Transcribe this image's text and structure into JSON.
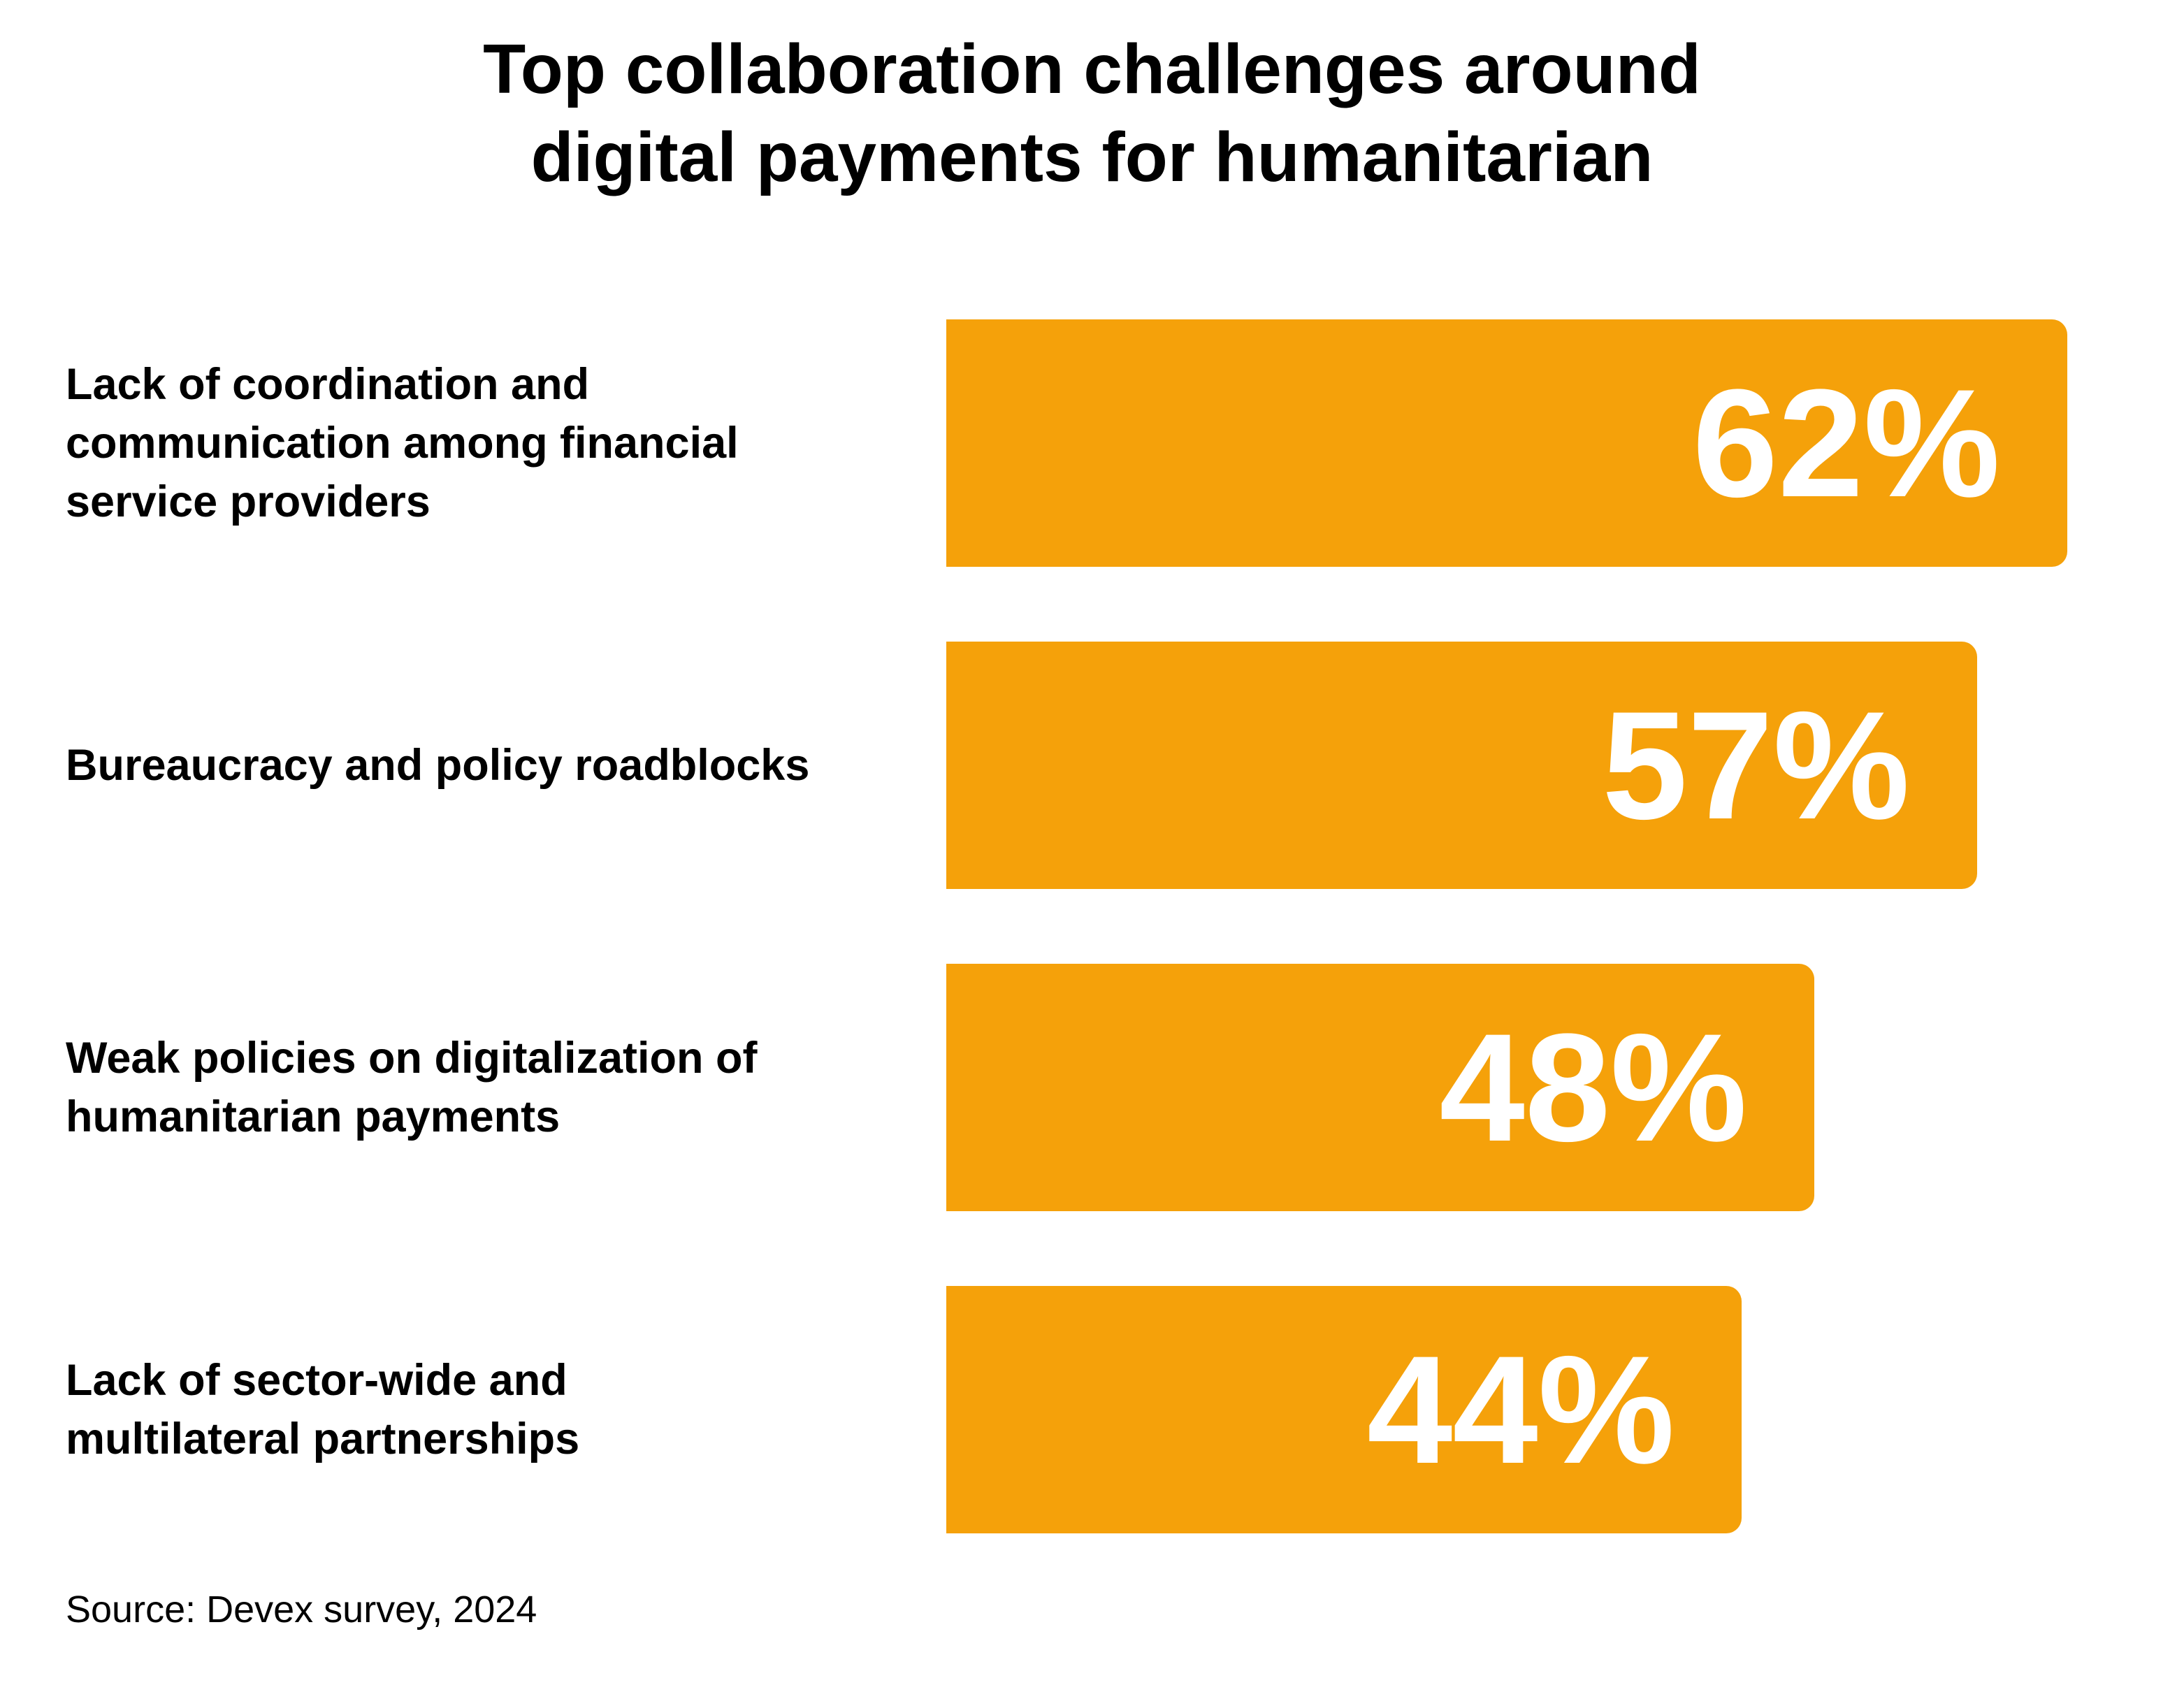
{
  "chart_data": {
    "type": "bar",
    "orientation": "horizontal",
    "title_lines": [
      "Top collaboration challenges around",
      "digital payments for humanitarian"
    ],
    "categories": [
      "Lack of coordination and communication among financial service providers",
      "Bureaucracy and policy roadblocks",
      "Weak policies on digitalization of humanitarian payments",
      "Lack of sector-wide and multilateral partnerships"
    ],
    "label_lines": [
      [
        "Lack of coordination and",
        "communication among financial",
        "service providers"
      ],
      [
        "Bureaucracy and policy roadblocks"
      ],
      [
        "Weak policies on digitalization of",
        "humanitarian payments"
      ],
      [
        "Lack of sector-wide and",
        "multilateral partnerships"
      ]
    ],
    "values": [
      62,
      57,
      48,
      44
    ],
    "value_labels": [
      "62%",
      "57%",
      "48%",
      "44%"
    ],
    "unit": "%",
    "xlim": [
      0,
      62
    ],
    "xlabel": "",
    "ylabel": "",
    "grid": false,
    "legend": false,
    "source": "Source: Devex survey, 2024"
  },
  "colors": {
    "bar": "#F5A10A",
    "value_text": "#FFFFFF",
    "text": "#000000",
    "background": "#FFFFFF"
  }
}
